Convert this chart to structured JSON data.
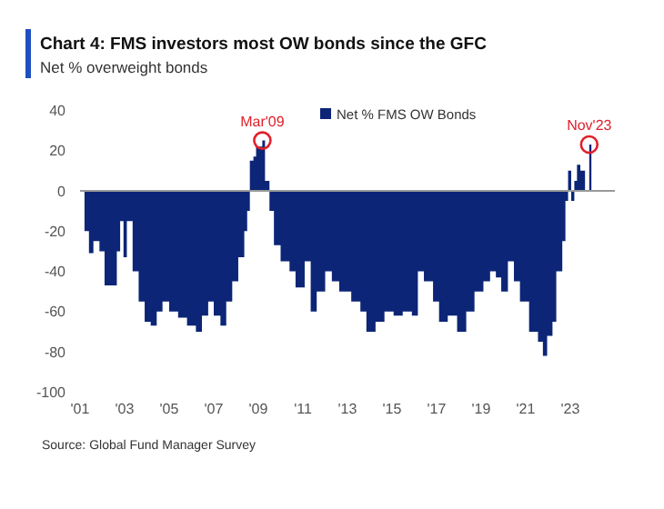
{
  "chart_data": {
    "type": "area",
    "title": "Chart 4: FMS investors most OW bonds since the GFC",
    "subtitle": "Net % overweight bonds",
    "legend": "top",
    "series": [
      {
        "name": "Net % FMS OW Bonds",
        "color": "#0c2577",
        "x": [
          2001.1,
          2001.2,
          2001.4,
          2001.6,
          2001.87,
          2002.1,
          2002.5,
          2002.65,
          2002.8,
          2002.95,
          2003.1,
          2003.36,
          2003.63,
          2003.9,
          2004.17,
          2004.44,
          2004.7,
          2005.0,
          2005.4,
          2005.8,
          2006.2,
          2006.47,
          2006.75,
          2007.0,
          2007.3,
          2007.56,
          2007.83,
          2008.1,
          2008.37,
          2008.5,
          2008.62,
          2008.78,
          2008.9,
          2009.18,
          2009.3,
          2009.5,
          2009.7,
          2010.0,
          2010.4,
          2010.67,
          2010.95,
          2011.08,
          2011.35,
          2011.62,
          2012.0,
          2012.3,
          2012.63,
          2013.17,
          2013.58,
          2013.85,
          2014.26,
          2014.66,
          2015.07,
          2015.48,
          2015.89,
          2016.16,
          2016.43,
          2016.84,
          2017.11,
          2017.5,
          2017.92,
          2018.33,
          2018.7,
          2019.1,
          2019.4,
          2019.66,
          2019.9,
          2020.2,
          2020.47,
          2020.74,
          2021.15,
          2021.55,
          2021.77,
          2021.96,
          2022.2,
          2022.37,
          2022.64,
          2022.78,
          2022.9,
          2023.04,
          2023.18,
          2023.3,
          2023.45,
          2023.66,
          2023.85
        ],
        "values": [
          0,
          -20,
          -31,
          -25,
          -30,
          -47,
          -47,
          -30,
          -15,
          -33,
          -15,
          -40,
          -55,
          -65,
          -67,
          -60,
          -55,
          -60,
          -63,
          -67,
          -70,
          -62,
          -55,
          -62,
          -67,
          -55,
          -45,
          -33,
          -20,
          -10,
          15,
          17,
          22,
          25,
          5,
          -10,
          -27,
          -35,
          -40,
          -48,
          -48,
          -35,
          -60,
          -50,
          -40,
          -45,
          -50,
          -55,
          -60,
          -70,
          -65,
          -60,
          -62,
          -60,
          -62,
          -40,
          -45,
          -55,
          -65,
          -62,
          -70,
          -60,
          -50,
          -45,
          -40,
          -43,
          -50,
          -35,
          -45,
          -55,
          -70,
          -75,
          -82,
          -72,
          -65,
          -40,
          -25,
          -5,
          10,
          -5,
          5,
          13,
          10,
          0,
          23
        ]
      }
    ],
    "xlim": [
      2001,
      2025
    ],
    "ylim": [
      -100,
      40
    ],
    "xticks": [
      {
        "value": 2001,
        "label": "'01"
      },
      {
        "value": 2003,
        "label": "'03"
      },
      {
        "value": 2005,
        "label": "'05"
      },
      {
        "value": 2007,
        "label": "'07"
      },
      {
        "value": 2009,
        "label": "'09"
      },
      {
        "value": 2011,
        "label": "'11"
      },
      {
        "value": 2013,
        "label": "'13"
      },
      {
        "value": 2015,
        "label": "'15"
      },
      {
        "value": 2017,
        "label": "'17"
      },
      {
        "value": 2019,
        "label": "'19"
      },
      {
        "value": 2021,
        "label": "'21"
      },
      {
        "value": 2023,
        "label": "'23"
      }
    ],
    "yticks": [
      -100,
      -80,
      -60,
      -40,
      -20,
      0,
      20,
      40
    ],
    "annotations": [
      {
        "text": "Mar'09",
        "x": 2009.18,
        "y": 25
      },
      {
        "text": "Nov'23",
        "x": 2023.85,
        "y": 23
      },
      "Source: Global Fund Manager Survey"
    ]
  }
}
